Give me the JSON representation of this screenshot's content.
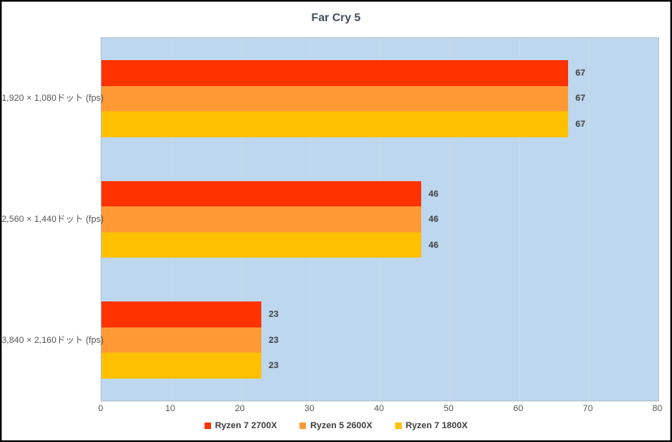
{
  "chart": {
    "title": "Far Cry 5"
  },
  "chart_data": {
    "type": "bar",
    "orientation": "horizontal",
    "title": "Far Cry 5",
    "categories": [
      "1,920 × 1,080ドット (fps)",
      "2,560 × 1,440ドット (fps)",
      "3,840 × 2,160ドット (fps)"
    ],
    "series": [
      {
        "name": "Ryzen 7 2700X",
        "color": "#FF3300",
        "values": [
          67,
          46,
          23
        ]
      },
      {
        "name": "Ryzen 5 2600X",
        "color": "#FF9933",
        "values": [
          67,
          46,
          23
        ]
      },
      {
        "name": "Ryzen 7 1800X",
        "color": "#FFC000",
        "values": [
          67,
          46,
          23
        ]
      }
    ],
    "xlim": [
      0,
      80
    ],
    "xticks": [
      0,
      10,
      20,
      30,
      40,
      50,
      60,
      70,
      80
    ],
    "grid": true,
    "legend_position": "bottom",
    "plot_bg": "#BDD7EE"
  }
}
